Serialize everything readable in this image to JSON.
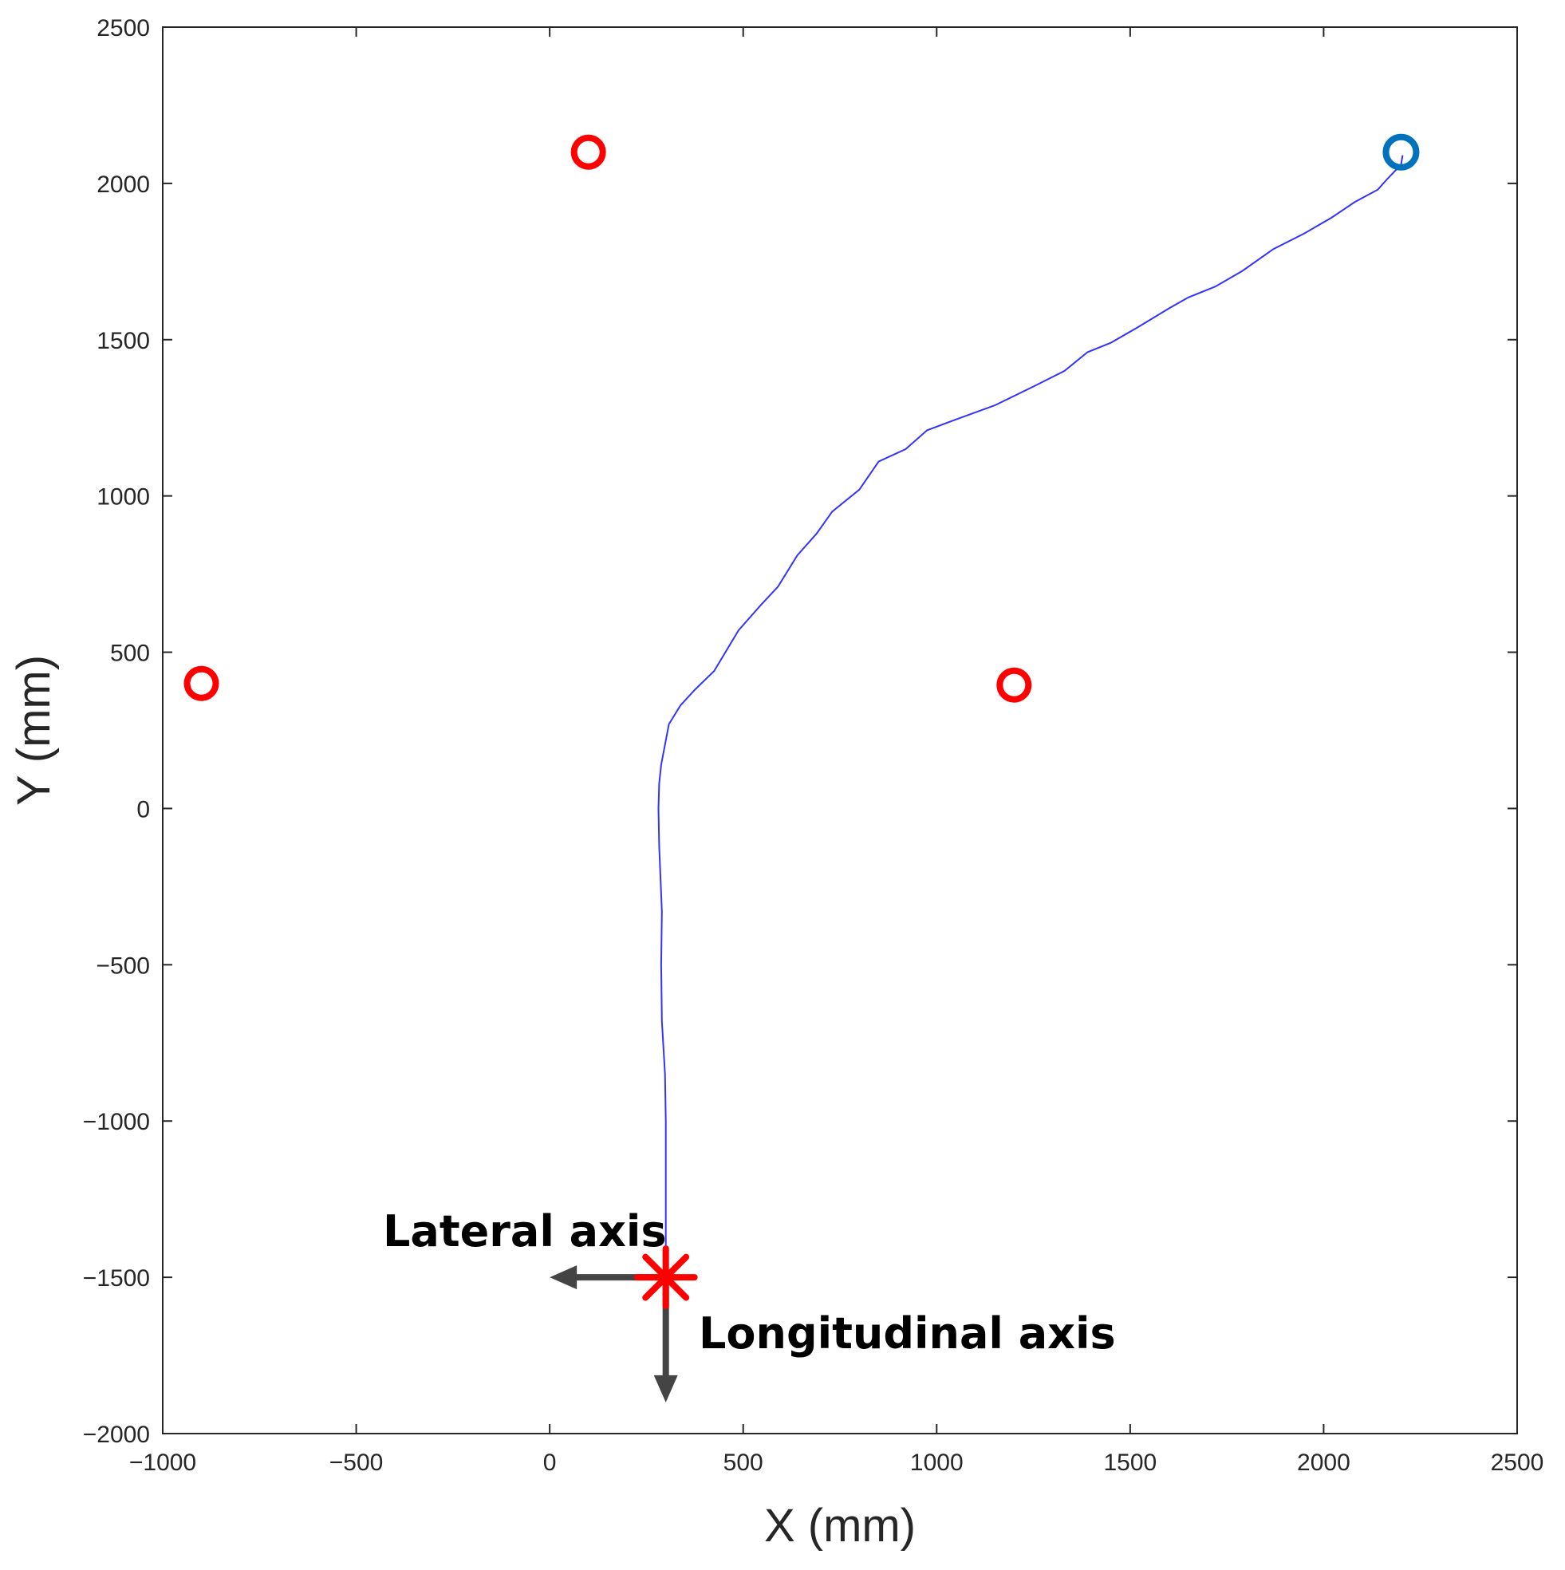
{
  "chart_data": {
    "type": "scatter",
    "xlabel": "X (mm)",
    "ylabel": "Y (mm)",
    "xlim": [
      -1000,
      2500
    ],
    "ylim": [
      -2000,
      2500
    ],
    "x_ticks": [
      -1000,
      -500,
      0,
      500,
      1000,
      1500,
      2000,
      2500
    ],
    "y_ticks": [
      -2000,
      -1500,
      -1000,
      -500,
      0,
      500,
      1000,
      1500,
      2000,
      2500
    ],
    "x_tick_labels": [
      "−1000",
      "−500",
      "0",
      "500",
      "1000",
      "1500",
      "2000",
      "2500"
    ],
    "y_tick_labels": [
      "−2000",
      "−1500",
      "−1000",
      "−500",
      "0",
      "500",
      "1000",
      "1500",
      "2000",
      "2500"
    ],
    "grid": false,
    "colors": {
      "path": "#3333ff",
      "obstacle": "#ff0000",
      "goal": "#0072bd",
      "start": "#ff0000",
      "arrow": "#444444",
      "frame": "#262626"
    },
    "series": [
      {
        "kind": "path",
        "points": [
          [
            300,
            -1500
          ],
          [
            300,
            -1300
          ],
          [
            300,
            -1000
          ],
          [
            298,
            -850
          ],
          [
            290,
            -680
          ],
          [
            288,
            -500
          ],
          [
            290,
            -330
          ],
          [
            283,
            -120
          ],
          [
            281,
            0
          ],
          [
            283,
            80
          ],
          [
            288,
            140
          ],
          [
            308,
            270
          ],
          [
            338,
            330
          ],
          [
            375,
            380
          ],
          [
            425,
            440
          ],
          [
            488,
            570
          ],
          [
            545,
            650
          ],
          [
            590,
            710
          ],
          [
            640,
            810
          ],
          [
            690,
            880
          ],
          [
            730,
            950
          ],
          [
            800,
            1020
          ],
          [
            850,
            1110
          ],
          [
            920,
            1150
          ],
          [
            975,
            1210
          ],
          [
            1040,
            1240
          ],
          [
            1150,
            1290
          ],
          [
            1250,
            1350
          ],
          [
            1330,
            1400
          ],
          [
            1390,
            1460
          ],
          [
            1450,
            1490
          ],
          [
            1520,
            1540
          ],
          [
            1600,
            1600
          ],
          [
            1650,
            1635
          ],
          [
            1720,
            1670
          ],
          [
            1790,
            1720
          ],
          [
            1870,
            1790
          ],
          [
            1950,
            1840
          ],
          [
            2020,
            1890
          ],
          [
            2080,
            1940
          ],
          [
            2140,
            1980
          ],
          [
            2165,
            2015
          ],
          [
            2200,
            2060
          ],
          [
            2204,
            2090
          ]
        ]
      },
      {
        "kind": "obstacles",
        "points": [
          [
            100,
            2100
          ],
          [
            -900,
            400
          ],
          [
            1200,
            395
          ]
        ]
      },
      {
        "kind": "goal",
        "points": [
          [
            2200,
            2100
          ]
        ]
      },
      {
        "kind": "start",
        "points": [
          [
            300,
            -1500
          ]
        ]
      }
    ],
    "annotations": {
      "lateral": "Lateral axis",
      "longitudinal": "Longitudinal axis",
      "lateral_arrow_end": [
        0,
        -1500
      ],
      "longitudinal_arrow_end": [
        300,
        -1900
      ]
    }
  }
}
